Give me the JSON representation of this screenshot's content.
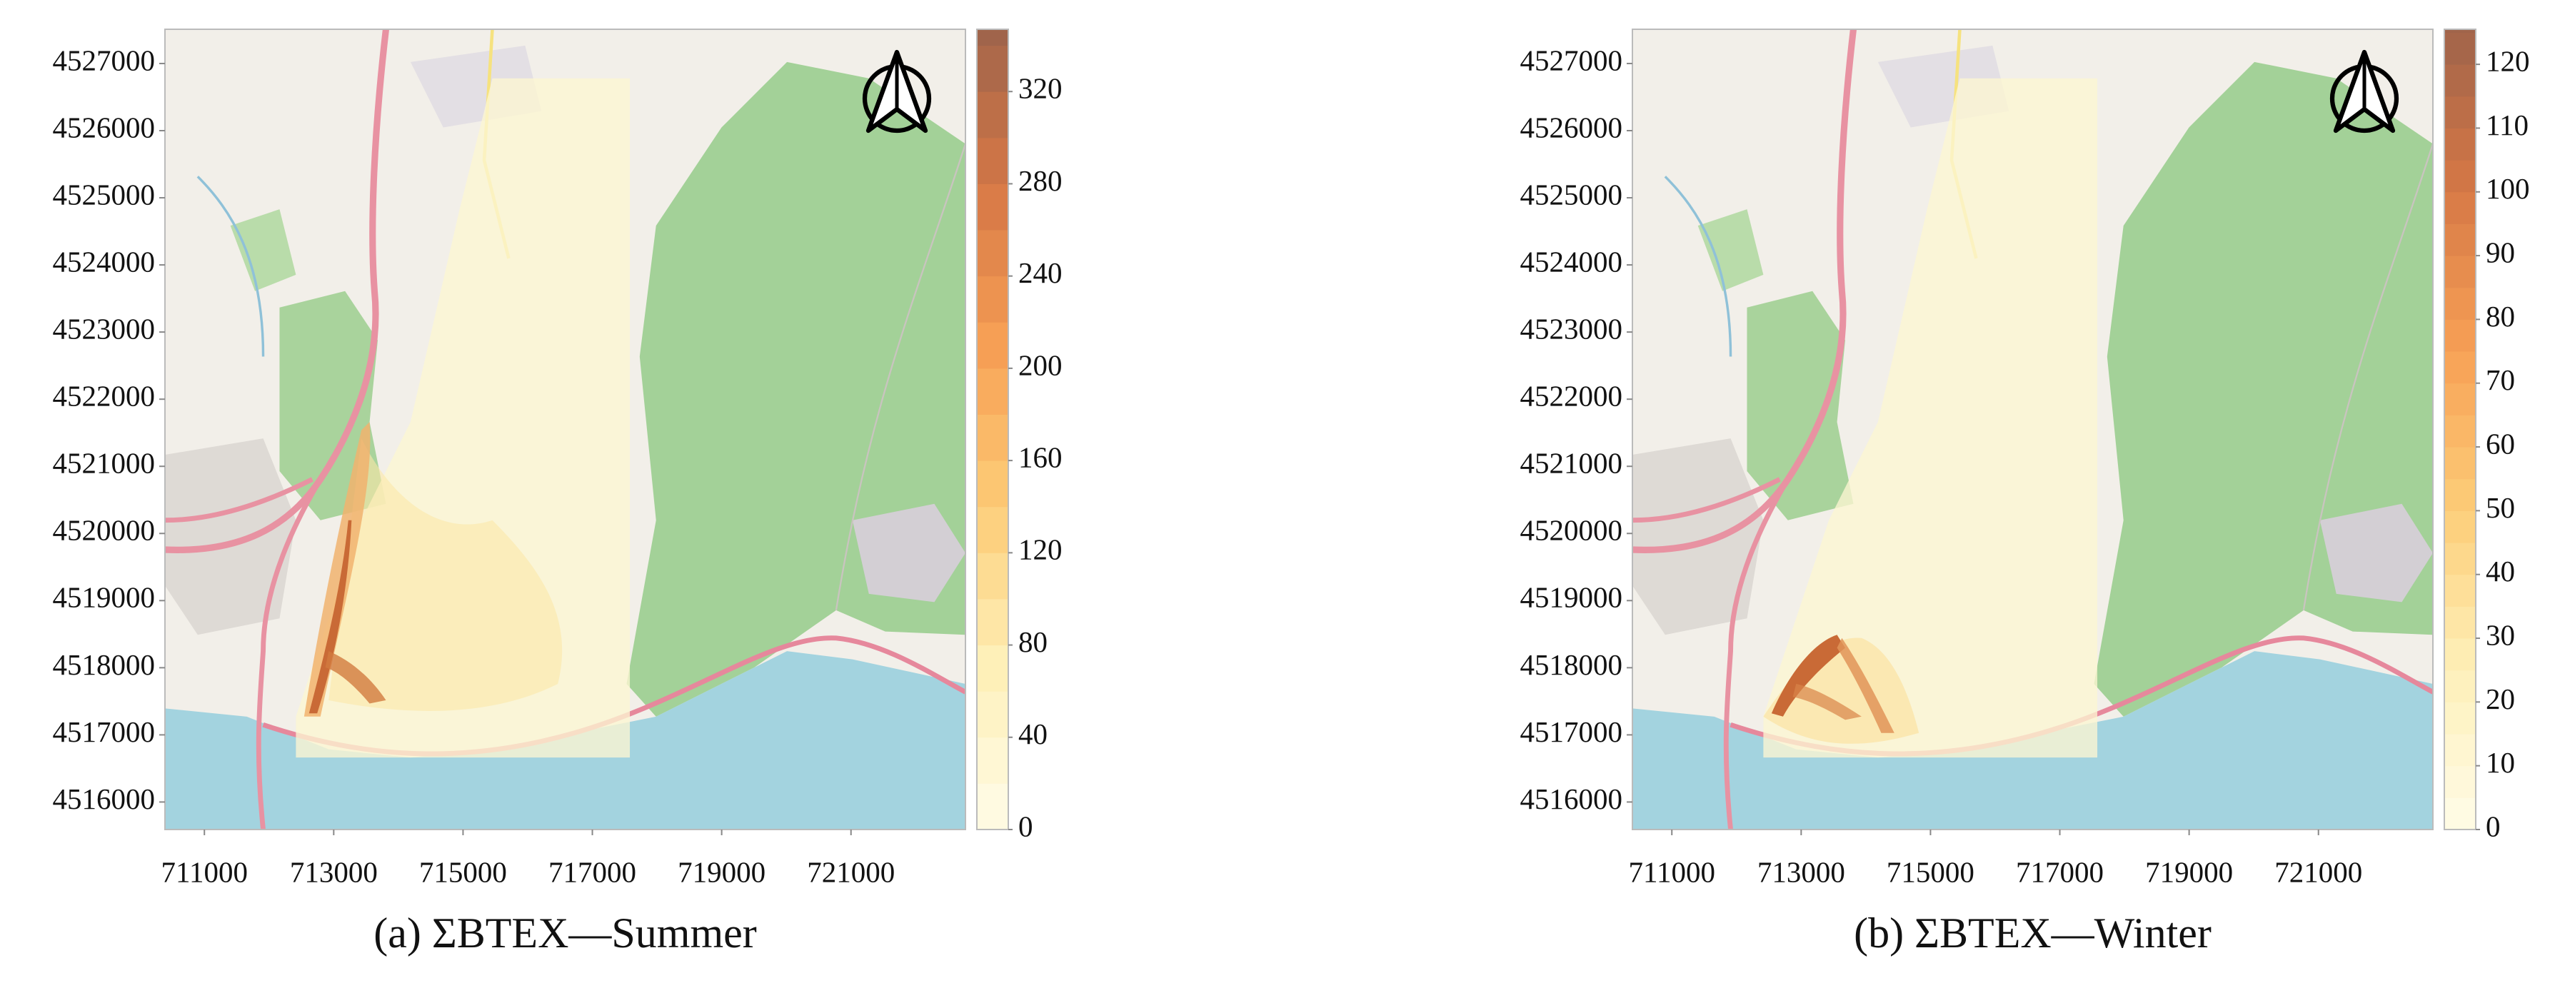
{
  "chart_data": [
    {
      "type": "heatmap",
      "caption": "(a) ΣBTEX—Summer",
      "xlim": [
        710390,
        722770
      ],
      "xticks": [
        711000,
        713000,
        715000,
        717000,
        719000,
        721000
      ],
      "ylim": [
        4515590,
        4527510
      ],
      "yticks": [
        4516000,
        4517000,
        4518000,
        4519000,
        4520000,
        4521000,
        4522000,
        4523000,
        4524000,
        4525000,
        4526000,
        4527000
      ],
      "clim": [
        0,
        347
      ],
      "cticks": [
        0,
        40,
        80,
        120,
        160,
        200,
        240,
        280,
        320
      ]
    },
    {
      "type": "heatmap",
      "caption": "(b) ΣBTEX—Winter",
      "xlim": [
        710390,
        722770
      ],
      "xticks": [
        711000,
        713000,
        715000,
        717000,
        719000,
        721000
      ],
      "ylim": [
        4515590,
        4527510
      ],
      "yticks": [
        4516000,
        4517000,
        4518000,
        4519000,
        4520000,
        4521000,
        4522000,
        4523000,
        4524000,
        4525000,
        4526000,
        4527000
      ],
      "clim": [
        0,
        125.5
      ],
      "cticks": [
        0,
        10,
        20,
        30,
        40,
        50,
        60,
        70,
        80,
        90,
        100,
        110,
        120
      ]
    }
  ]
}
